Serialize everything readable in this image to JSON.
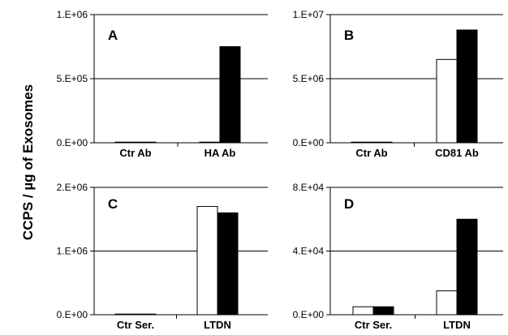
{
  "figure": {
    "ylabel": "CCPS / µg of Exosomes"
  },
  "colors": {
    "series_a": "#ffffff",
    "series_b": "#000000",
    "outline": "#000000"
  },
  "chart_data": [
    {
      "type": "bar",
      "panel": "A",
      "title": "",
      "categories": [
        "Ctr Ab",
        "HA Ab"
      ],
      "series": [
        {
          "values": [
            5000,
            5000
          ]
        },
        {
          "values": [
            5000,
            750000
          ]
        }
      ],
      "ylim": [
        0,
        1000000
      ],
      "yticks": [
        "0.E+00",
        "5.E+05",
        "1.E+06"
      ],
      "grid": true
    },
    {
      "type": "bar",
      "panel": "B",
      "title": "",
      "categories": [
        "Ctr Ab",
        "CD81 Ab"
      ],
      "series": [
        {
          "values": [
            0,
            6500000
          ]
        },
        {
          "values": [
            0,
            8800000
          ]
        }
      ],
      "ylim": [
        0,
        10000000
      ],
      "yticks": [
        "0.E+00",
        "5.E+06",
        "1.E+07"
      ],
      "grid": true
    },
    {
      "type": "bar",
      "panel": "C",
      "title": "",
      "categories": [
        "Ctr Ser.",
        "LTDN"
      ],
      "series": [
        {
          "values": [
            8000,
            1700000
          ]
        },
        {
          "values": [
            8000,
            1600000
          ]
        }
      ],
      "ylim": [
        0,
        2000000
      ],
      "yticks": [
        "0.E+00",
        "1.E+06",
        "2.E+06"
      ],
      "grid": true
    },
    {
      "type": "bar",
      "panel": "D",
      "title": "",
      "categories": [
        "Ctr Ser.",
        "LTDN"
      ],
      "series": [
        {
          "values": [
            5000,
            15000
          ]
        },
        {
          "values": [
            5000,
            60000
          ]
        }
      ],
      "ylim": [
        0,
        80000
      ],
      "yticks": [
        "0.E+00",
        "4.E+04",
        "8.E+04"
      ],
      "grid": true
    }
  ]
}
